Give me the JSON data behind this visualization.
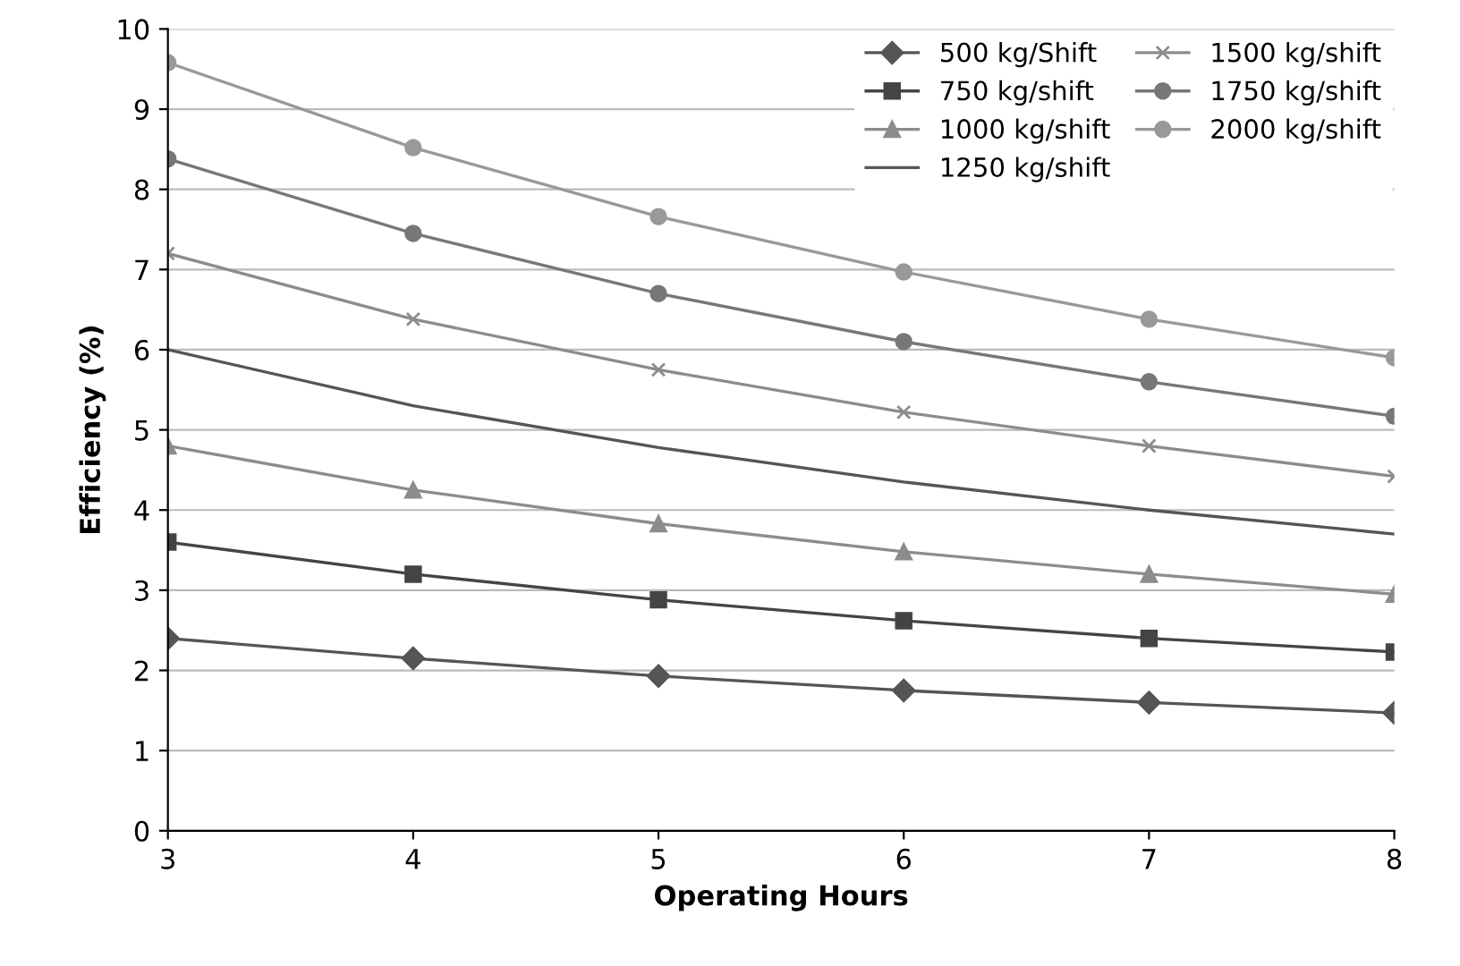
{
  "chart_data": {
    "type": "line",
    "xlabel": "Operating Hours",
    "ylabel": "Efficiency (%)",
    "x": [
      3,
      4,
      5,
      6,
      7,
      8
    ],
    "xlim": [
      3,
      8
    ],
    "xticks": [
      3,
      4,
      5,
      6,
      7,
      8
    ],
    "ylim": [
      0,
      10
    ],
    "yticks": [
      0,
      1,
      2,
      3,
      4,
      5,
      6,
      7,
      8,
      9,
      10
    ],
    "grid": "y",
    "legend": "top right",
    "line_style": "solid",
    "series": [
      {
        "name": "500 kg/Shift",
        "color": "#555555",
        "marker": "diamond",
        "values": [
          2.4,
          2.15,
          1.93,
          1.75,
          1.6,
          1.47
        ]
      },
      {
        "name": "750 kg/shift",
        "color": "#444444",
        "marker": "square",
        "values": [
          3.6,
          3.2,
          2.88,
          2.62,
          2.4,
          2.23
        ]
      },
      {
        "name": "1000 kg/shift",
        "color": "#8c8c8c",
        "marker": "triangle",
        "values": [
          4.8,
          4.25,
          3.83,
          3.48,
          3.2,
          2.95
        ]
      },
      {
        "name": "1250 kg/shift",
        "color": "#555555",
        "marker": "none",
        "values": [
          6.0,
          5.3,
          4.78,
          4.35,
          4.0,
          3.7
        ]
      },
      {
        "name": "1500 kg/shift",
        "color": "#8c8c8c",
        "marker": "cross",
        "values": [
          7.2,
          6.38,
          5.75,
          5.22,
          4.8,
          4.42
        ]
      },
      {
        "name": "1750 kg/shift",
        "color": "#777777",
        "marker": "circle",
        "values": [
          8.38,
          7.45,
          6.7,
          6.1,
          5.6,
          5.17
        ]
      },
      {
        "name": "2000 kg/shift",
        "color": "#999999",
        "marker": "circle",
        "values": [
          9.58,
          8.52,
          7.66,
          6.97,
          6.38,
          5.9
        ]
      }
    ]
  }
}
